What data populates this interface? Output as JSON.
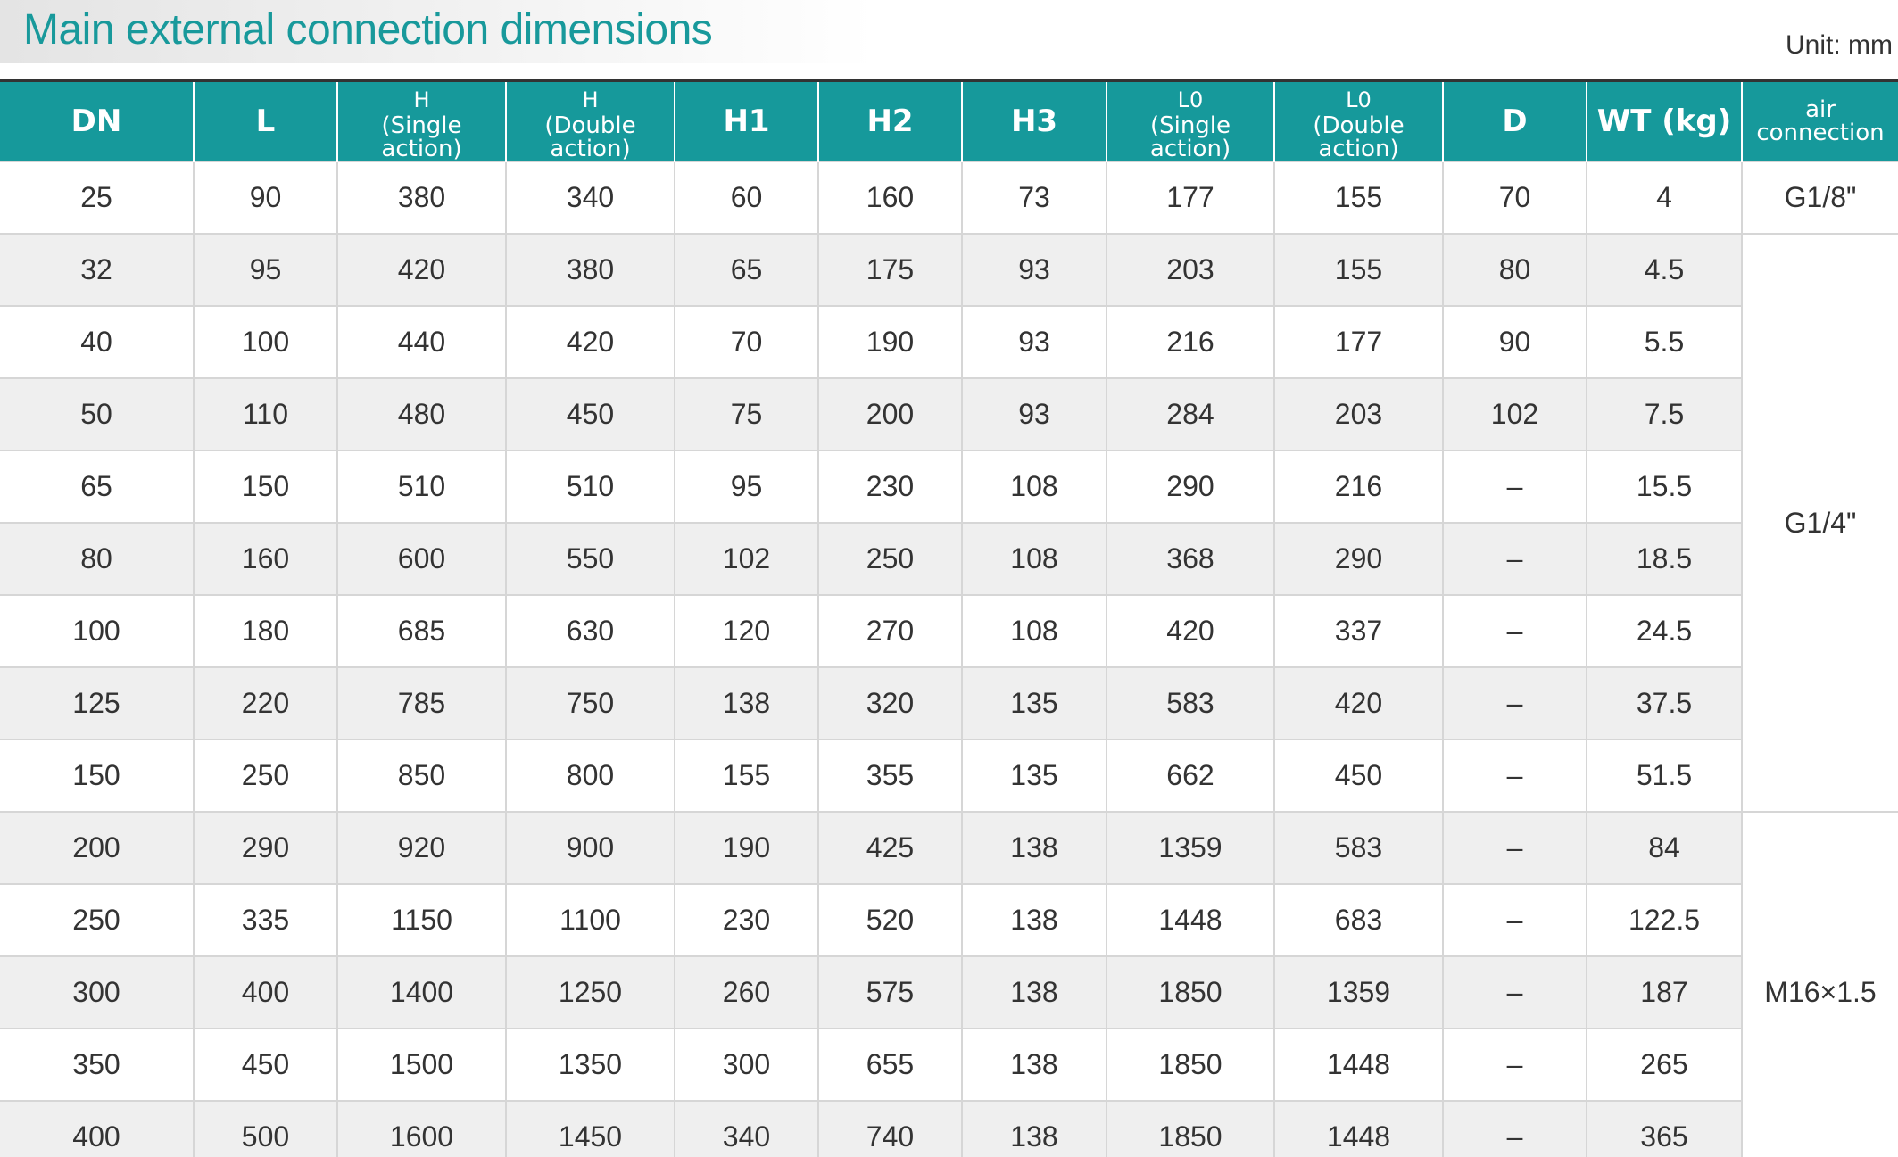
{
  "header": {
    "title": "Main external connection dimensions",
    "unit": "Unit: mm"
  },
  "table": {
    "columns": [
      {
        "title": "DN"
      },
      {
        "title": "L"
      },
      {
        "title": "H",
        "subtitle": "(Single action)"
      },
      {
        "title": "H",
        "subtitle": "(Double action)"
      },
      {
        "title": "H1"
      },
      {
        "title": "H2"
      },
      {
        "title": "H3"
      },
      {
        "title": "L0",
        "subtitle": "(Single action)"
      },
      {
        "title": "L0",
        "subtitle": "(Double action)"
      },
      {
        "title": "D"
      },
      {
        "title": "WT (kg)"
      },
      {
        "title": "air connection"
      }
    ],
    "rows": [
      [
        25,
        90,
        380,
        340,
        60,
        160,
        73,
        177,
        155,
        70,
        4,
        "G1/8\""
      ],
      [
        32,
        95,
        420,
        380,
        65,
        175,
        93,
        203,
        155,
        80,
        4.5,
        "G1/4\""
      ],
      [
        40,
        100,
        440,
        420,
        70,
        190,
        93,
        216,
        177,
        90,
        5.5
      ],
      [
        50,
        110,
        480,
        450,
        75,
        200,
        93,
        284,
        203,
        102,
        7.5
      ],
      [
        65,
        150,
        510,
        510,
        95,
        230,
        108,
        290,
        216,
        "–",
        15.5
      ],
      [
        80,
        160,
        600,
        550,
        102,
        250,
        108,
        368,
        290,
        "–",
        18.5
      ],
      [
        100,
        180,
        685,
        630,
        120,
        270,
        108,
        420,
        337,
        "–",
        24.5
      ],
      [
        125,
        220,
        785,
        750,
        138,
        320,
        135,
        583,
        420,
        "–",
        37.5
      ],
      [
        150,
        250,
        850,
        800,
        155,
        355,
        135,
        662,
        450,
        "–",
        51.5
      ],
      [
        200,
        290,
        920,
        900,
        190,
        425,
        138,
        1359,
        583,
        "–",
        84,
        "M16×1.5"
      ],
      [
        250,
        335,
        1150,
        1100,
        230,
        520,
        138,
        1448,
        683,
        "–",
        122.5
      ],
      [
        300,
        400,
        1400,
        1250,
        260,
        575,
        138,
        1850,
        1359,
        "–",
        187
      ],
      [
        350,
        450,
        1500,
        1350,
        300,
        655,
        138,
        1850,
        1448,
        "–",
        265
      ],
      [
        400,
        500,
        1600,
        1450,
        340,
        740,
        138,
        1850,
        1448,
        "–",
        365
      ]
    ]
  }
}
